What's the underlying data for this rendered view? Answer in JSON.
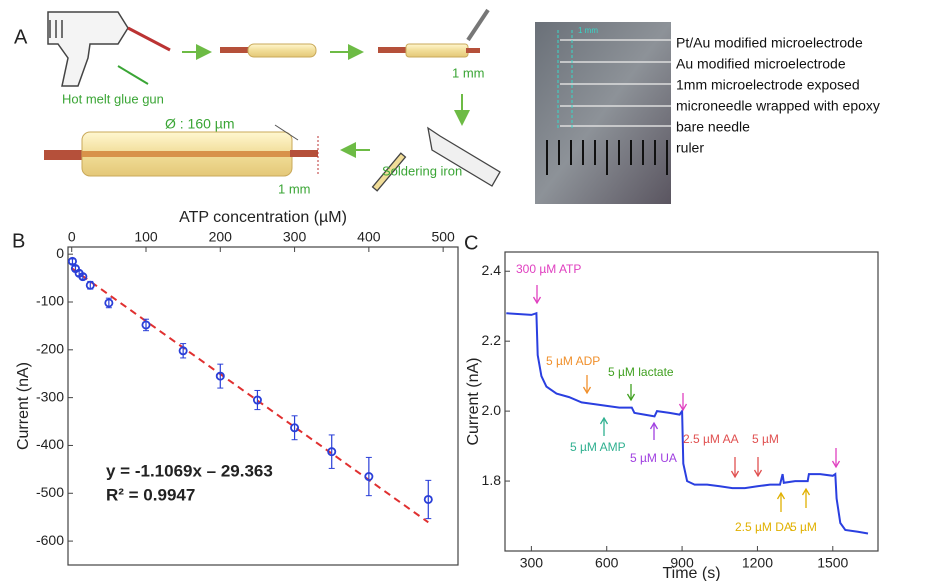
{
  "panel_a": {
    "label": "A",
    "steps": [
      "Hot melt glue gun",
      "Soldering iron"
    ],
    "dimensions": [
      "Ø : 160 µm",
      "1 mm",
      "1 mm"
    ],
    "photo": {
      "scale": "1 mm",
      "labels": [
        "Pt/Au modified microelectrode",
        "Au modified microelectrode",
        "1mm microelectrode exposed",
        "microneedle wrapped with epoxy",
        "bare needle",
        "ruler"
      ]
    }
  },
  "chart_data": [
    {
      "panel": "B",
      "type": "scatter",
      "x_label": "ATP concentration (µM)",
      "y_label": "Current (nA)",
      "x": [
        1,
        5,
        10,
        15,
        25,
        50,
        100,
        150,
        200,
        250,
        300,
        350,
        400,
        480
      ],
      "series": [
        {
          "color": "#2a3fd8",
          "values": [
            -15,
            -30,
            -40,
            -47,
            -65,
            -102,
            -148,
            -202,
            -255,
            -305,
            -363,
            -413,
            -465,
            -513
          ],
          "errors": [
            5,
            5,
            5,
            5,
            8,
            10,
            12,
            15,
            25,
            20,
            25,
            35,
            40,
            40
          ]
        }
      ],
      "fit": {
        "slope": -1.1069,
        "intercept": -29.363,
        "color": "#e03030",
        "label": "y = -1.1069x – 29.363",
        "r2_label": "R² = 0.9947"
      },
      "xlim": [
        -5,
        520
      ],
      "xticks": [
        0,
        100,
        200,
        300,
        400,
        500
      ],
      "ylim": [
        -650,
        15
      ],
      "yticks": [
        0,
        -100,
        -200,
        -300,
        -400,
        -500,
        -600
      ]
    },
    {
      "panel": "C",
      "type": "line",
      "x_label": "Time (s)",
      "y_label": "Current (nA)",
      "x": [
        200,
        300,
        320,
        325,
        340,
        360,
        400,
        450,
        500,
        550,
        600,
        650,
        700,
        710,
        750,
        790,
        800,
        850,
        890,
        900,
        905,
        920,
        950,
        1000,
        1050,
        1100,
        1150,
        1200,
        1250,
        1290,
        1300,
        1305,
        1350,
        1400,
        1405,
        1450,
        1500,
        1510,
        1515,
        1530,
        1550,
        1600,
        1640
      ],
      "series": [
        {
          "color": "#2a3fe0",
          "values": [
            2.28,
            2.275,
            2.28,
            2.16,
            2.1,
            2.07,
            2.05,
            2.04,
            2.025,
            2.02,
            2.015,
            2.01,
            2.01,
            1.995,
            1.99,
            1.985,
            2.0,
            1.995,
            1.99,
            2.0,
            1.85,
            1.8,
            1.79,
            1.79,
            1.785,
            1.78,
            1.78,
            1.785,
            1.79,
            1.79,
            1.82,
            1.795,
            1.8,
            1.8,
            1.82,
            1.82,
            1.815,
            1.82,
            1.75,
            1.68,
            1.66,
            1.655,
            1.65
          ]
        }
      ],
      "xlim": [
        195,
        1680
      ],
      "xticks": [
        300,
        600,
        900,
        1200,
        1500
      ],
      "ylim": [
        1.6,
        2.455
      ],
      "yticks": [
        1.8,
        {
          "value": 2,
          "label": "2.0"
        },
        2.2,
        2.4
      ],
      "annotations": [
        {
          "text": "300 µM ATP",
          "color": "#e040c0"
        },
        {
          "text": "5 µM ADP",
          "color": "#f0902c"
        },
        {
          "text": "5 µM lactate",
          "color": "#40a020"
        },
        {
          "text": "5 µM AMP",
          "color": "#30b090"
        },
        {
          "text": "5 µM UA",
          "color": "#a040e0"
        },
        {
          "text": "2.5 µM AA",
          "color": "#e05050"
        },
        {
          "text": "5 µM",
          "color": "#e05050"
        },
        {
          "text": "2.5 µM DA",
          "color": "#e0b000"
        },
        {
          "text": "5 µM",
          "color": "#e0b000"
        }
      ]
    }
  ]
}
